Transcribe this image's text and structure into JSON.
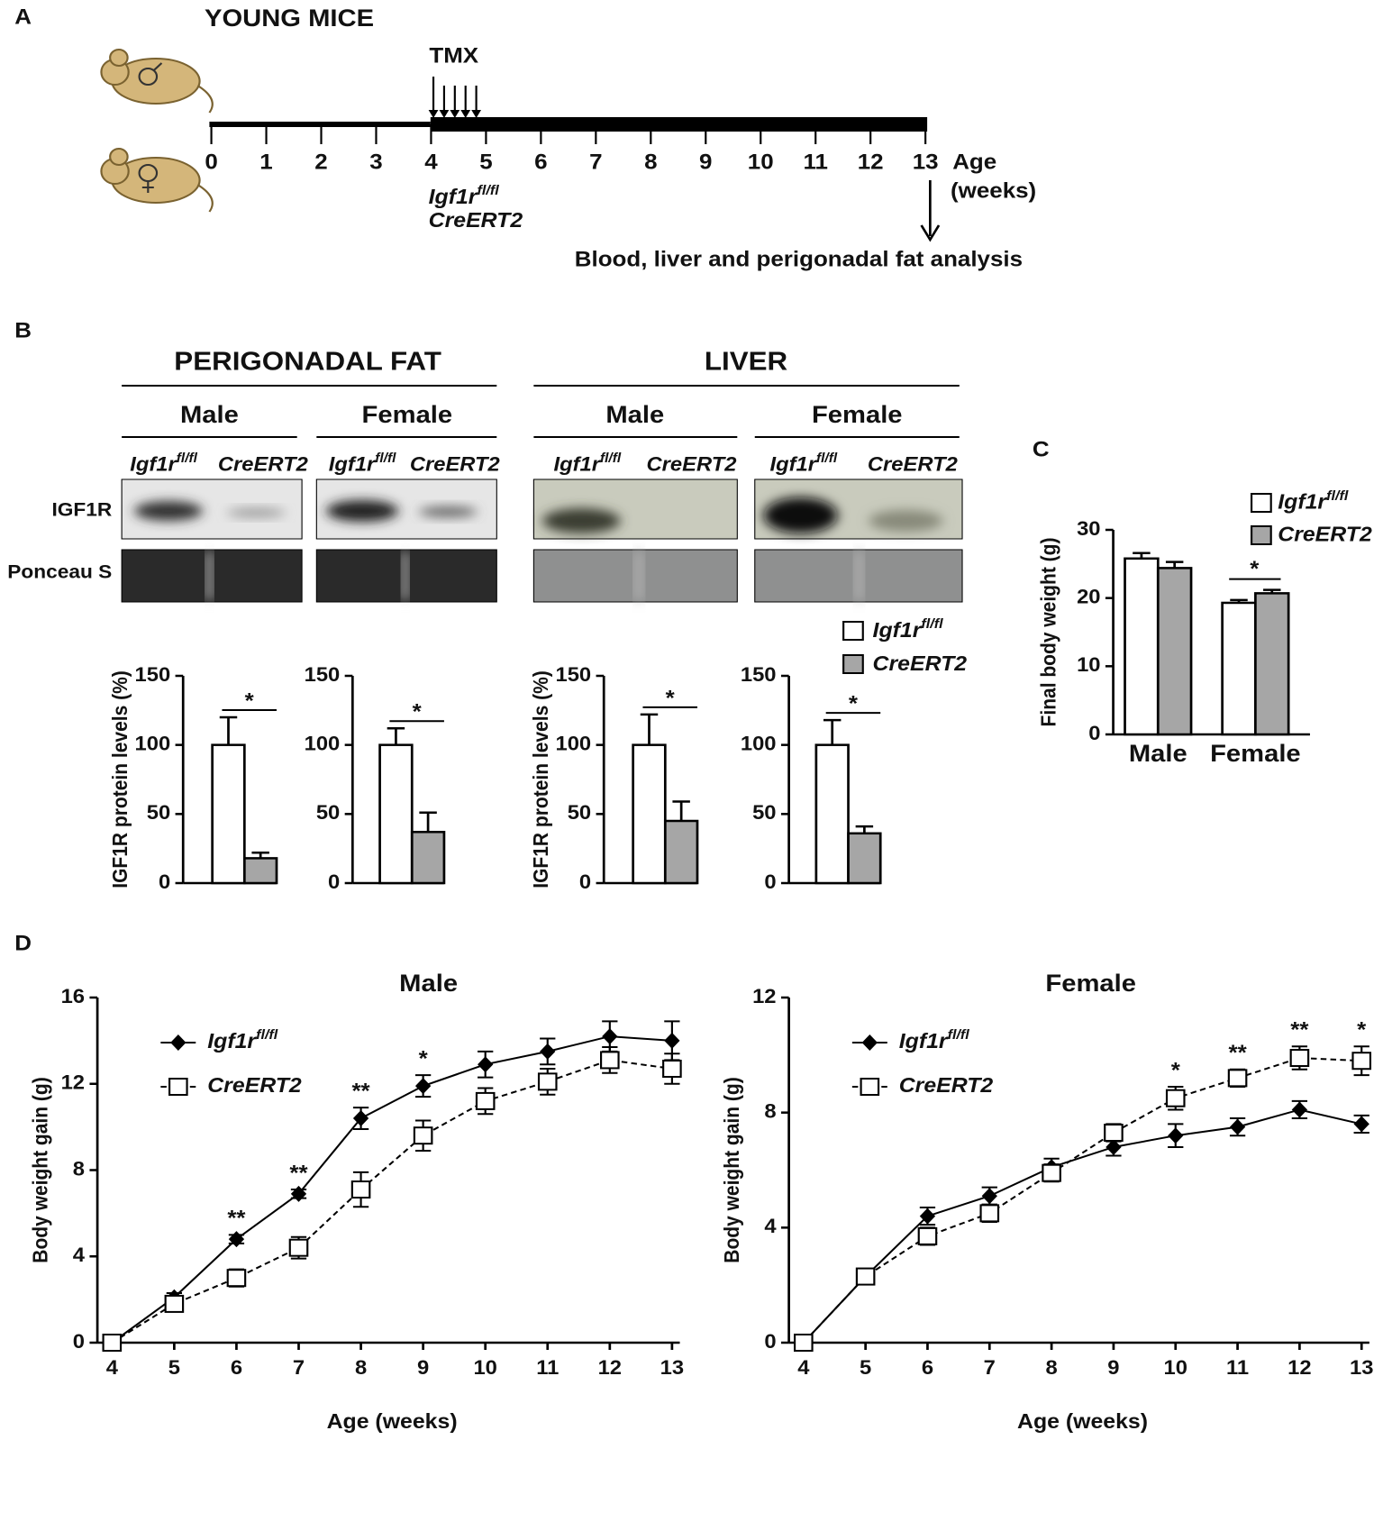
{
  "panels": [
    "A",
    "B",
    "C",
    "D"
  ],
  "timeline": {
    "title": "YOUNG MICE",
    "treatment": "TMX",
    "ticks": [
      0,
      1,
      2,
      3,
      4,
      5,
      6,
      7,
      8,
      9,
      10,
      11,
      12,
      13
    ],
    "axis_label": "Age",
    "axis_unit": "(weeks)",
    "gene": {
      "name": "Igf1r",
      "sup": "fl/fl"
    },
    "line": "CreERT2",
    "endpoint": "Blood, liver and perigonadal fat analysis"
  },
  "blots": {
    "tissues": [
      "PERIGONADAL FAT",
      "LIVER"
    ],
    "sexes": [
      "Male",
      "Female",
      "Male",
      "Female"
    ],
    "lanes": [
      {
        "name": "Igf1r",
        "sup": "fl/fl"
      },
      {
        "name": "CreERT2"
      },
      {
        "name": "Igf1r",
        "sup": "fl/fl"
      },
      {
        "name": "CreERT2"
      },
      {
        "name": "Igf1r",
        "sup": "fl/fl"
      },
      {
        "name": "CreERT2"
      },
      {
        "name": "Igf1r",
        "sup": "fl/fl"
      },
      {
        "name": "CreERT2"
      }
    ],
    "rows": [
      "IGF1R",
      "Ponceau S"
    ]
  },
  "chart_data": [
    {
      "type": "bar",
      "ylabel": "IGF1R protein levels (%)",
      "values": [
        100,
        18
      ],
      "errors": [
        20,
        4
      ],
      "colors": [
        "#ffffff",
        "#a6a6a6"
      ],
      "ylim": [
        0,
        150
      ],
      "yticks": [
        0,
        50,
        100,
        150
      ],
      "significance": "*"
    },
    {
      "type": "bar",
      "values": [
        100,
        37
      ],
      "errors": [
        12,
        14
      ],
      "colors": [
        "#ffffff",
        "#a6a6a6"
      ],
      "ylim": [
        0,
        150
      ],
      "yticks": [
        0,
        50,
        100,
        150
      ],
      "significance": "*"
    },
    {
      "type": "bar",
      "ylabel": "IGF1R protein levels (%)",
      "values": [
        100,
        45
      ],
      "errors": [
        22,
        14
      ],
      "colors": [
        "#ffffff",
        "#a6a6a6"
      ],
      "ylim": [
        0,
        150
      ],
      "yticks": [
        0,
        50,
        100,
        150
      ],
      "significance": "*"
    },
    {
      "type": "bar",
      "values": [
        100,
        36
      ],
      "errors": [
        18,
        5
      ],
      "colors": [
        "#ffffff",
        "#a6a6a6"
      ],
      "ylim": [
        0,
        150
      ],
      "yticks": [
        0,
        50,
        100,
        150
      ],
      "significance": "*",
      "legend": [
        {
          "name": "Igf1r",
          "sup": "fl/fl"
        },
        {
          "name": "CreERT2"
        }
      ]
    },
    {
      "type": "bar",
      "ylabel": "Final body weight (g)",
      "categories": [
        "Male",
        "Female"
      ],
      "series": [
        {
          "name": "Igf1r",
          "sup": "fl/fl",
          "color": "#ffffff",
          "values": [
            25.8,
            19.3
          ],
          "errors": [
            0.8,
            0.4
          ]
        },
        {
          "name": "CreERT2",
          "color": "#a6a6a6",
          "values": [
            24.4,
            20.7
          ],
          "errors": [
            0.9,
            0.5
          ]
        }
      ],
      "ylim": [
        0,
        30
      ],
      "yticks": [
        0,
        10,
        20,
        30
      ],
      "significance": [
        null,
        "*"
      ]
    },
    {
      "type": "line",
      "title": "Male",
      "xlabel": "Age (weeks)",
      "ylabel": "Body weight gain (g)",
      "x": [
        4,
        5,
        6,
        7,
        8,
        9,
        10,
        11,
        12,
        13
      ],
      "xlim": [
        4,
        13
      ],
      "xticks": [
        4,
        5,
        6,
        7,
        8,
        9,
        10,
        11,
        12,
        13
      ],
      "ylim": [
        0,
        16
      ],
      "yticks": [
        0,
        4,
        8,
        12,
        16
      ],
      "series": [
        {
          "name": "Igf1r",
          "sup": "fl/fl",
          "color": "#000000",
          "marker": "diamond",
          "values": [
            0,
            2.1,
            4.8,
            6.9,
            10.4,
            11.9,
            12.9,
            13.5,
            14.2,
            14.0
          ],
          "errors": [
            0,
            0.2,
            0.2,
            0.2,
            0.5,
            0.5,
            0.6,
            0.6,
            0.7,
            0.9
          ]
        },
        {
          "name": "CreERT2",
          "color": "#000000",
          "marker": "square",
          "dash": true,
          "values": [
            0,
            1.8,
            3.0,
            4.4,
            7.1,
            9.6,
            11.2,
            12.1,
            13.1,
            12.7
          ],
          "errors": [
            0,
            0.2,
            0.4,
            0.5,
            0.8,
            0.7,
            0.6,
            0.6,
            0.6,
            0.7
          ]
        }
      ],
      "significance": [
        null,
        null,
        "**",
        "**",
        "**",
        "*",
        null,
        null,
        null,
        null
      ]
    },
    {
      "type": "line",
      "title": "Female",
      "xlabel": "Age (weeks)",
      "ylabel": "Body weight gain (g)",
      "x": [
        4,
        5,
        6,
        7,
        8,
        9,
        10,
        11,
        12,
        13
      ],
      "xlim": [
        4,
        13
      ],
      "xticks": [
        4,
        5,
        6,
        7,
        8,
        9,
        10,
        11,
        12,
        13
      ],
      "ylim": [
        0,
        12
      ],
      "yticks": [
        0,
        4,
        8,
        12
      ],
      "series": [
        {
          "name": "Igf1r",
          "sup": "fl/fl",
          "color": "#000000",
          "marker": "diamond",
          "values": [
            0,
            2.3,
            4.4,
            5.1,
            6.1,
            6.8,
            7.2,
            7.5,
            8.1,
            7.6
          ],
          "errors": [
            0,
            0.1,
            0.3,
            0.3,
            0.3,
            0.3,
            0.4,
            0.3,
            0.3,
            0.3
          ]
        },
        {
          "name": "CreERT2",
          "color": "#000000",
          "marker": "square",
          "dash": true,
          "values": [
            0,
            2.3,
            3.7,
            4.5,
            5.9,
            7.3,
            8.5,
            9.2,
            9.9,
            9.8
          ],
          "errors": [
            0,
            0.1,
            0.3,
            0.3,
            0.3,
            0.3,
            0.4,
            0.3,
            0.4,
            0.5
          ]
        }
      ],
      "significance": [
        null,
        null,
        null,
        null,
        null,
        null,
        "*",
        "**",
        "**",
        "*"
      ]
    }
  ]
}
